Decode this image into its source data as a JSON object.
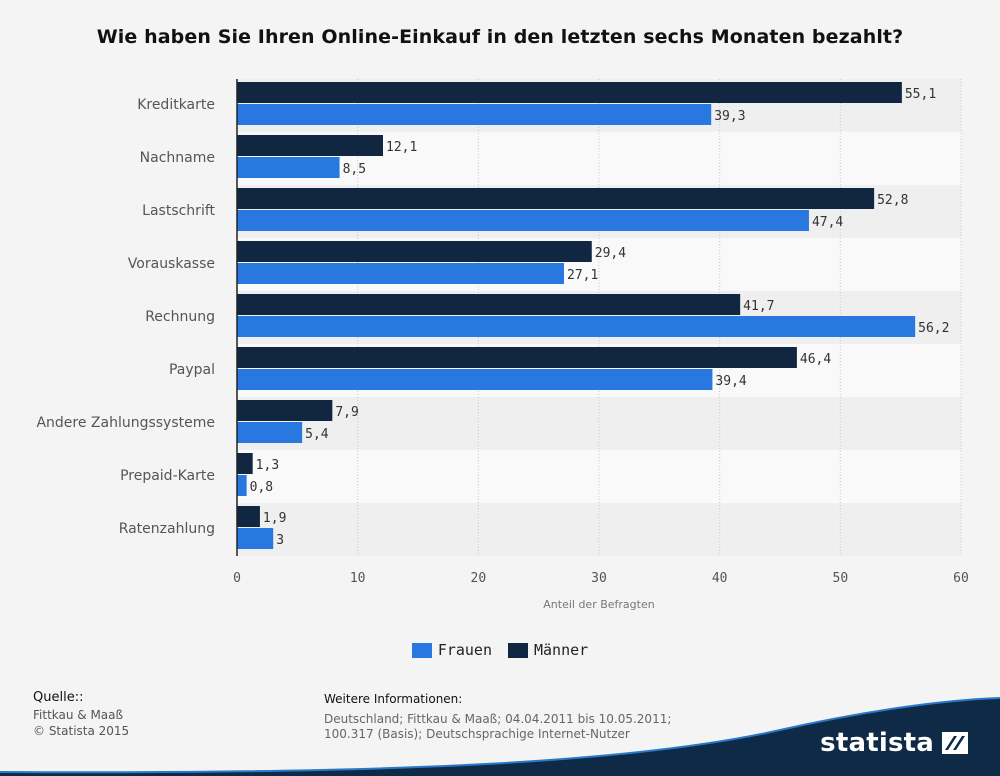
{
  "title": "Wie haben Sie Ihren Online-Einkauf in den letzten sechs Monaten bezahlt?",
  "colors": {
    "frauen": "#2878e0",
    "maenner": "#112640",
    "background": "#f4f4f4",
    "band_dark": "#efefef",
    "band_light": "#f9f9f9",
    "brand": "#0e2a47"
  },
  "chart_data": {
    "type": "bar",
    "orientation": "horizontal",
    "categories": [
      "Kreditkarte",
      "Nachname",
      "Lastschrift",
      "Vorauskasse",
      "Rechnung",
      "Paypal",
      "Andere Zahlungssysteme",
      "Prepaid-Karte",
      "Ratenzahlung"
    ],
    "series": [
      {
        "name": "Männer",
        "color": "#112640",
        "values": [
          55.1,
          12.1,
          52.8,
          29.4,
          41.7,
          46.4,
          7.9,
          1.3,
          1.9
        ],
        "labels": [
          "55,1",
          "12,1",
          "52,8",
          "29,4",
          "41,7",
          "46,4",
          "7,9",
          "1,3",
          "1,9"
        ]
      },
      {
        "name": "Frauen",
        "color": "#2878e0",
        "values": [
          39.3,
          8.5,
          47.4,
          27.1,
          56.2,
          39.4,
          5.4,
          0.8,
          3
        ],
        "labels": [
          "39,3",
          "8,5",
          "47,4",
          "27,1",
          "56,2",
          "39,4",
          "5,4",
          "0,8",
          "3"
        ]
      }
    ],
    "xlabel": "Anteil der Befragten",
    "ylabel": "",
    "xlim": [
      0,
      60
    ],
    "xticks": [
      "0",
      "10",
      "20",
      "30",
      "40",
      "50",
      "60"
    ],
    "grid": true,
    "legend_position": "bottom"
  },
  "legend": [
    {
      "label": "Frauen",
      "color": "#2878e0"
    },
    {
      "label": "Männer",
      "color": "#112640"
    }
  ],
  "source": {
    "heading": "Quelle::",
    "lines": [
      "Fittkau & Maaß",
      "© Statista 2015"
    ]
  },
  "info": {
    "heading": "Weitere Informationen:",
    "text": "Deutschland; Fittkau & Maaß; 04.04.2011 bis 10.05.2011; 100.317 (Basis); Deutschsprachige Internet-Nutzer"
  },
  "brand": {
    "name": "statista",
    "icon": "statista-logo-icon"
  }
}
